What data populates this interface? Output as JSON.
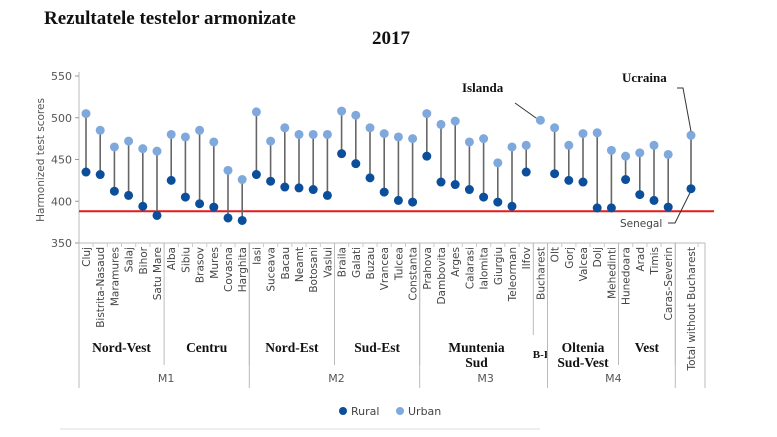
{
  "title": "Rezultatele testelor armonizate",
  "year": "2017",
  "chart_data": {
    "type": "dumbbell",
    "ylabel": "Harmonized test scores",
    "ylim": [
      350,
      550
    ],
    "yticks": [
      350,
      400,
      450,
      500,
      550
    ],
    "grid": false,
    "legend": {
      "position": "bottom-center",
      "entries": [
        {
          "name": "Rural",
          "color": "#0b4f9c"
        },
        {
          "name": "Urban",
          "color": "#7fa9dc"
        }
      ]
    },
    "reference_line": {
      "label": "Senegal",
      "value": 388,
      "color": "#e41a1c"
    },
    "annotations": [
      {
        "text": "Islanda",
        "target": "Bucharest"
      },
      {
        "text": "Ucraina",
        "target": "Total without Bucharest",
        "series": "Urban"
      },
      {
        "text": "Senegal",
        "target": "Total without Bucharest",
        "series": "Rural"
      }
    ],
    "categories": [
      "Cluj",
      "Bistrita-Nasaud",
      "Maramures",
      "Salaj",
      "Bihor",
      "Satu Mare",
      "Alba",
      "Sibiu",
      "Brasov",
      "Mures",
      "Covasna",
      "Harghita",
      "Iasi",
      "Suceava",
      "Bacau",
      "Neamt",
      "Botosani",
      "Vaslui",
      "Braila",
      "Galati",
      "Buzau",
      "Vrancea",
      "Tulcea",
      "Constanta",
      "Prahova",
      "Dambovita",
      "Arges",
      "Calarasi",
      "Ialomita",
      "Giurgiu",
      "Teleorman",
      "Ilfov",
      "Bucharest",
      "Olt",
      "Gorj",
      "Valcea",
      "Dolj",
      "Mehedinti",
      "Hunedoara",
      "Arad",
      "Timis",
      "Caras-Severin",
      "Total without Bucharest"
    ],
    "series": [
      {
        "name": "Rural",
        "values": [
          435,
          432,
          412,
          407,
          394,
          383,
          425,
          405,
          397,
          393,
          380,
          377,
          432,
          424,
          417,
          416,
          414,
          407,
          457,
          445,
          428,
          411,
          401,
          399,
          454,
          423,
          420,
          414,
          405,
          399,
          394,
          435,
          null,
          433,
          425,
          423,
          392,
          392,
          426,
          408,
          401,
          393,
          415
        ]
      },
      {
        "name": "Urban",
        "values": [
          505,
          485,
          465,
          472,
          463,
          460,
          480,
          477,
          485,
          471,
          437,
          426,
          507,
          472,
          488,
          480,
          480,
          480,
          508,
          503,
          488,
          481,
          477,
          475,
          505,
          492,
          496,
          471,
          475,
          446,
          465,
          467,
          497,
          488,
          467,
          481,
          482,
          461,
          454,
          458,
          467,
          456,
          479
        ]
      }
    ],
    "regions": [
      {
        "name": "Nord-Vest",
        "start": 0,
        "end": 5,
        "macro": "M1"
      },
      {
        "name": "Centru",
        "start": 6,
        "end": 11,
        "macro": "M1"
      },
      {
        "name": "Nord-Est",
        "start": 12,
        "end": 17,
        "macro": "M2"
      },
      {
        "name": "Sud-Est",
        "start": 18,
        "end": 23,
        "macro": "M2"
      },
      {
        "name": "Muntenia Sud",
        "start": 24,
        "end": 31,
        "macro": "M3"
      },
      {
        "name": "B-I",
        "start": 32,
        "end": 32,
        "macro": "M3"
      },
      {
        "name": "Oltenia Sud-Vest",
        "start": 33,
        "end": 37,
        "macro": "M4"
      },
      {
        "name": "Vest",
        "start": 38,
        "end": 41,
        "macro": "M4"
      }
    ],
    "macros": [
      "M1",
      "M2",
      "M3",
      "M4"
    ]
  }
}
